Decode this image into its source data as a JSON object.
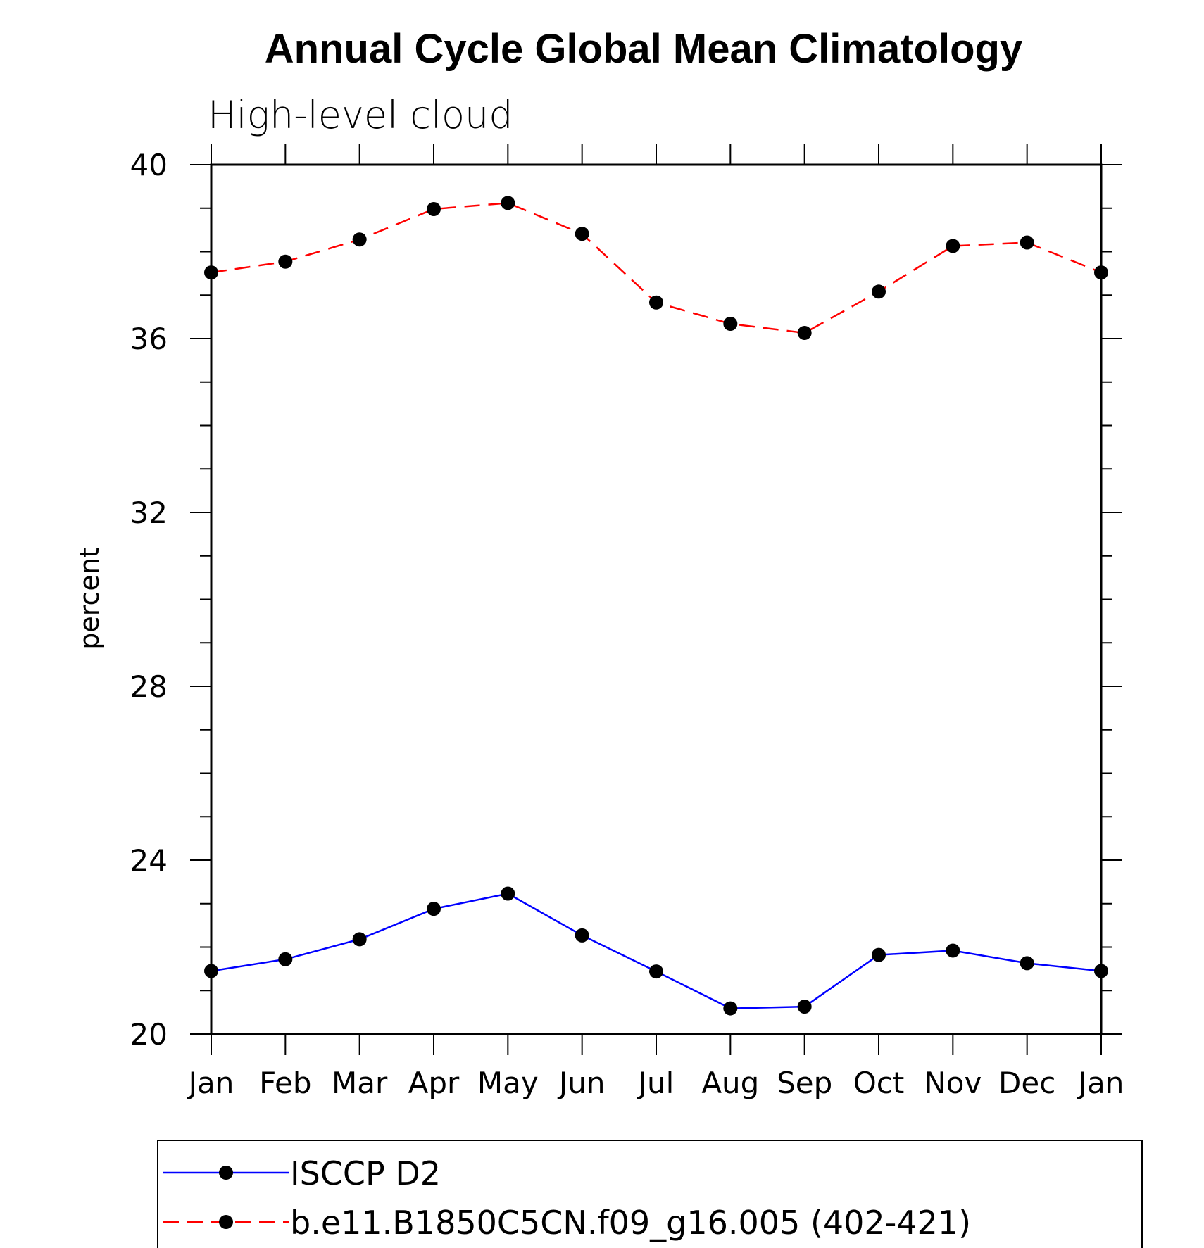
{
  "chart_data": {
    "type": "line",
    "title": "Annual Cycle Global Mean Climatology",
    "subtitle": "High-level cloud",
    "ylabel": "percent",
    "xlabel": "",
    "categories": [
      "Jan",
      "Feb",
      "Mar",
      "Apr",
      "May",
      "Jun",
      "Jul",
      "Aug",
      "Sep",
      "Oct",
      "Nov",
      "Dec",
      "Jan"
    ],
    "ylim": [
      20,
      40
    ],
    "yticks": [
      "20",
      "24",
      "28",
      "32",
      "36",
      "40"
    ],
    "grid": false,
    "legend_position": "bottom",
    "series": [
      {
        "name": "ISCCP D2",
        "color": "#0000ff",
        "line_style": "solid",
        "marker": "filled-circle",
        "values": [
          21.45,
          21.72,
          22.18,
          22.88,
          23.23,
          22.27,
          21.44,
          20.59,
          20.63,
          21.82,
          21.92,
          21.63,
          21.45
        ]
      },
      {
        "name": "b.e11.B1850C5CN.f09_g16.005 (402-421)",
        "color": "#ff0000",
        "line_style": "dashed",
        "marker": "filled-circle",
        "values": [
          37.52,
          37.77,
          38.28,
          38.98,
          39.12,
          38.41,
          36.83,
          36.34,
          36.13,
          37.08,
          38.13,
          38.21,
          37.52
        ]
      }
    ]
  }
}
